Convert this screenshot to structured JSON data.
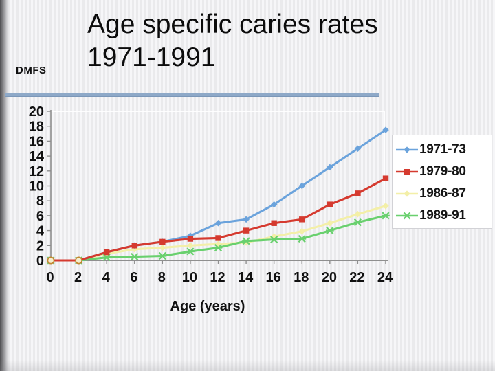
{
  "slide": {
    "title_line1": "Age specific caries rates",
    "title_line2": "1971-1991",
    "y_axis_unit_label": "DMFS"
  },
  "chart_data": {
    "type": "line",
    "title": "Age specific caries rates 1971-1991",
    "xlabel": "Age (years)",
    "ylabel": "DMFS",
    "x": [
      0,
      2,
      4,
      6,
      8,
      10,
      12,
      14,
      16,
      18,
      20,
      22,
      24
    ],
    "xlim": [
      0,
      24
    ],
    "ylim": [
      0,
      20
    ],
    "xtick_step": 2,
    "ytick_step": 2,
    "grid": false,
    "legend_position": "right",
    "series": [
      {
        "name": "1971-73",
        "marker": "diamond",
        "color": "#6BA3DC",
        "values": [
          0,
          0,
          1.1,
          2.0,
          2.5,
          3.3,
          5.0,
          5.5,
          7.5,
          10.0,
          12.5,
          15.0,
          17.5
        ]
      },
      {
        "name": "1979-80",
        "marker": "square",
        "color": "#D53A2F",
        "values": [
          0,
          0,
          1.1,
          2.0,
          2.5,
          2.9,
          3.0,
          4.0,
          5.0,
          5.5,
          7.5,
          9.0,
          11.0
        ]
      },
      {
        "name": "1986-87",
        "marker": "diamond",
        "color": "#F3EFA8",
        "values": [
          0,
          0,
          0.9,
          1.5,
          1.7,
          2.0,
          2.2,
          2.4,
          3.2,
          3.9,
          5.0,
          6.2,
          7.3
        ]
      },
      {
        "name": "1989-91",
        "marker": "x",
        "color": "#69D06E",
        "values": [
          0,
          0,
          0.4,
          0.5,
          0.6,
          1.2,
          1.7,
          2.6,
          2.8,
          2.9,
          4.0,
          5.1,
          6.0
        ]
      }
    ],
    "origin_overlap_marker": {
      "shape": "circle",
      "stroke": "#C4862F",
      "fill": "#F4EFCF",
      "at_x": [
        0,
        2
      ]
    },
    "axis_color": "#8F8F8F",
    "tick_label_color": "#111111",
    "top_gridline_color": "#FFFFFF"
  },
  "colors": {
    "divider_bar": "#8EA9C8",
    "background_stripe_dark": "#EAEAEC",
    "background_stripe_light": "#F6F6F8",
    "legend_border": "#D2D2D6"
  }
}
